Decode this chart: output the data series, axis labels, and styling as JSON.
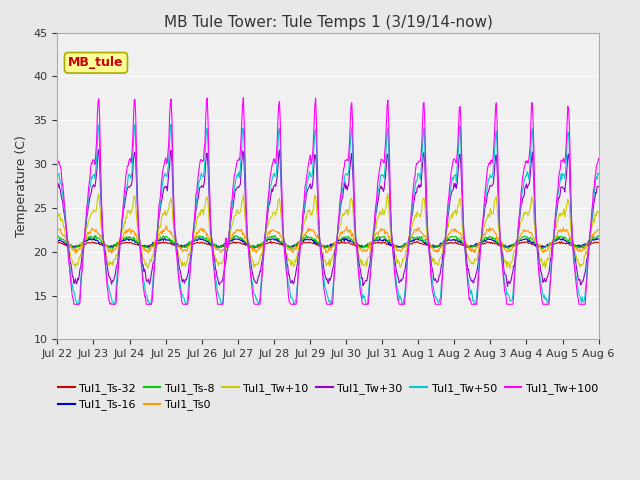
{
  "title": "MB Tule Tower: Tule Temps 1 (3/19/14-now)",
  "ylabel": "Temperature (C)",
  "ylim": [
    10,
    45
  ],
  "yticks": [
    10,
    15,
    20,
    25,
    30,
    35,
    40,
    45
  ],
  "xtick_positions": [
    0,
    1,
    2,
    3,
    4,
    5,
    6,
    7,
    8,
    9,
    10,
    11,
    12,
    13,
    14,
    15
  ],
  "xtick_labels": [
    "Jul 22",
    "Jul 23",
    "Jul 24",
    "Jul 25",
    "Jul 26",
    "Jul 27",
    "Jul 28",
    "Jul 29",
    "Jul 30",
    "Jul 31",
    "Aug 1",
    "Aug 2",
    "Aug 3",
    "Aug 4",
    "Aug 5",
    "Aug 6"
  ],
  "series": [
    {
      "label": "Tul1_Ts-32",
      "color": "#cc0000"
    },
    {
      "label": "Tul1_Ts-16",
      "color": "#0000cc"
    },
    {
      "label": "Tul1_Ts-8",
      "color": "#00cc00"
    },
    {
      "label": "Tul1_Ts0",
      "color": "#ff9900"
    },
    {
      "label": "Tul1_Tw+10",
      "color": "#cccc00"
    },
    {
      "label": "Tul1_Tw+30",
      "color": "#9900cc"
    },
    {
      "label": "Tul1_Tw+50",
      "color": "#00cccc"
    },
    {
      "label": "Tul1_Tw+100",
      "color": "#ff00ff"
    }
  ],
  "annotation_label": "MB_tule",
  "annotation_color": "#cc0000",
  "annotation_bg": "#ffff99",
  "annotation_edge": "#aaaa00",
  "fig_bg": "#e8e8e8",
  "plot_bg": "#f0f0f0",
  "grid_color": "#ffffff"
}
